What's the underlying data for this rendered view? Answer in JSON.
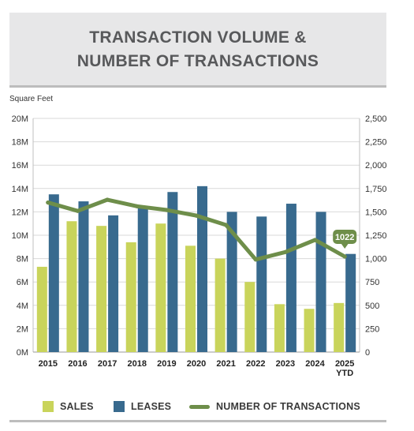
{
  "title": {
    "line1": "TRANSACTION VOLUME &",
    "line2": "NUMBER OF TRANSACTIONS"
  },
  "colors": {
    "sales": "#c9d45b",
    "leases": "#386a8e",
    "transactions": "#6e8e4a",
    "title_bg": "#e7e7e8",
    "rule": "#bdbdbd"
  },
  "chart_data": {
    "type": "bar",
    "categories": [
      "2015",
      "2016",
      "2017",
      "2018",
      "2019",
      "2020",
      "2021",
      "2022",
      "2023",
      "2024",
      "2025\nYTD"
    ],
    "ylabel": "Square Feet",
    "ylim": [
      0,
      20000000
    ],
    "y2lim": [
      0,
      2500
    ],
    "yticks": [
      "0M",
      "2M",
      "4M",
      "6M",
      "8M",
      "10M",
      "12M",
      "14M",
      "16M",
      "18M",
      "20M"
    ],
    "y2ticks": [
      "0",
      "250",
      "500",
      "750",
      "1,000",
      "1,250",
      "1,500",
      "1,750",
      "2,000",
      "2,250",
      "2,500"
    ],
    "grid": true,
    "legend": "bottom",
    "series": [
      {
        "name": "SALES",
        "type": "bar",
        "axis": "left",
        "values": [
          7300000,
          11200000,
          10800000,
          9400000,
          11000000,
          9100000,
          8000000,
          6000000,
          4100000,
          3700000,
          4200000
        ]
      },
      {
        "name": "LEASES",
        "type": "bar",
        "axis": "left",
        "values": [
          13500000,
          12900000,
          11700000,
          12500000,
          13700000,
          14200000,
          12000000,
          11600000,
          12700000,
          12000000,
          8400000
        ]
      },
      {
        "name": "NUMBER OF TRANSACTIONS",
        "type": "line",
        "axis": "right",
        "values": [
          1600,
          1510,
          1630,
          1560,
          1520,
          1460,
          1360,
          990,
          1070,
          1200,
          1022
        ]
      }
    ],
    "annotation": {
      "index": 10,
      "text": "1022"
    }
  }
}
